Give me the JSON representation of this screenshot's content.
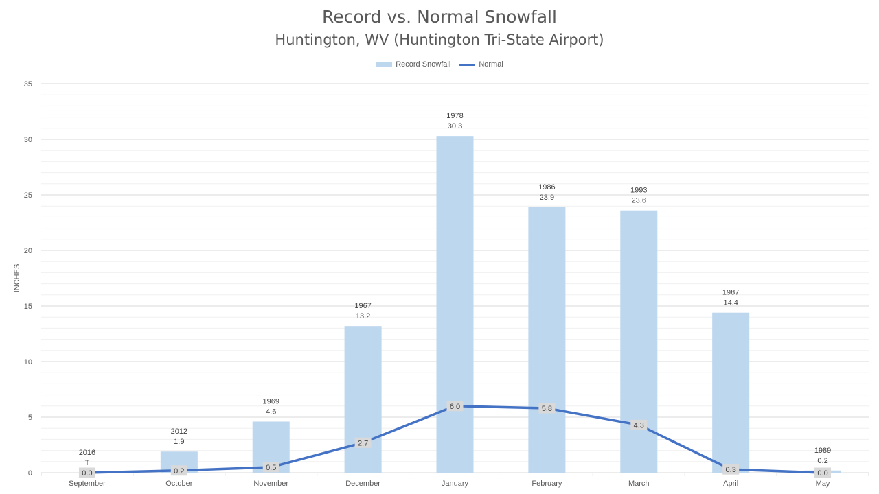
{
  "chart_data": {
    "type": "bar",
    "title": "Record vs. Normal Snowfall",
    "subtitle": "Huntington, WV (Huntington Tri-State Airport)",
    "ylabel": "INCHES",
    "ylim": [
      0,
      35
    ],
    "yticks": [
      "0",
      "5",
      "10",
      "15",
      "20",
      "25",
      "30",
      "35"
    ],
    "grid": true,
    "legend_position": "top",
    "categories": [
      "September",
      "October",
      "November",
      "December",
      "January",
      "February",
      "March",
      "April",
      "May"
    ],
    "series": [
      {
        "name": "Record Snowfall",
        "type": "bar",
        "color": "#bdd7ee",
        "values": [
          0.0,
          1.9,
          4.6,
          13.2,
          30.3,
          23.9,
          23.6,
          14.4,
          0.2
        ],
        "labels": [
          "T",
          "1.9",
          "4.6",
          "13.2",
          "30.3",
          "23.9",
          "23.6",
          "14.4",
          "0.2"
        ],
        "years": [
          "2016",
          "2012",
          "1969",
          "1967",
          "1978",
          "1986",
          "1993",
          "1987",
          "1989"
        ]
      },
      {
        "name": "Normal",
        "type": "line",
        "color": "#4472c4",
        "values": [
          0.0,
          0.2,
          0.5,
          2.7,
          6.0,
          5.8,
          4.3,
          0.3,
          0.0
        ],
        "labels": [
          "0.0",
          "0.2",
          "0.5",
          "2.7",
          "6.0",
          "5.8",
          "4.3",
          "0.3",
          "0.0"
        ]
      }
    ]
  }
}
